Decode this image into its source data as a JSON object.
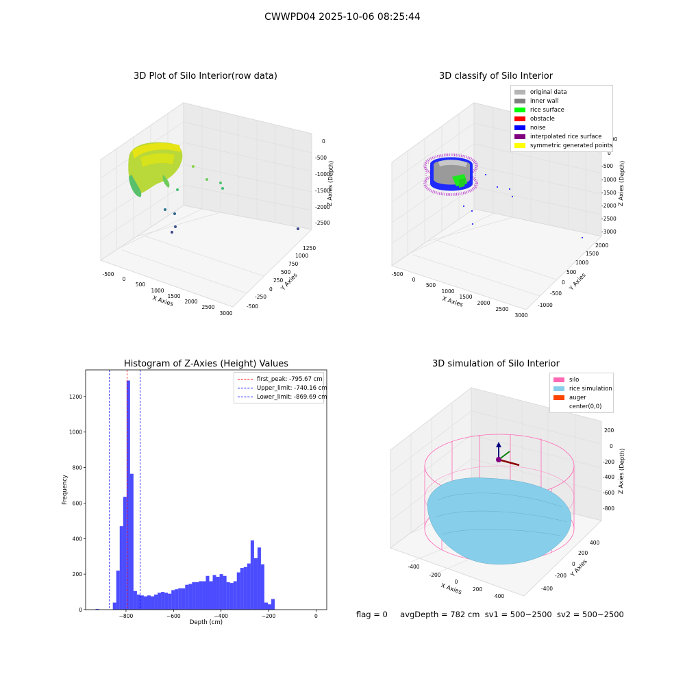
{
  "suptitle": "CWWPD04 2025-10-06 08:25:44",
  "panels": {
    "raw": {
      "title": "3D Plot of Silo Interior(row data)",
      "xlabel": "X Axies",
      "ylabel": "Y Axies",
      "zlabel": "Z Axies (Depth)",
      "xticks": [
        "-500",
        "0",
        "500",
        "1000",
        "1500",
        "2000",
        "2500",
        "3000"
      ],
      "yticks": [
        "-500",
        "-250",
        "0",
        "250",
        "500",
        "750",
        "1000",
        "1250"
      ],
      "zticks": [
        "0",
        "-500",
        "-1000",
        "-1500",
        "-2000",
        "-2500"
      ]
    },
    "classify": {
      "title": "3D classify of Silo Interior",
      "xlabel": "X Axies",
      "ylabel": "Y Axies",
      "zlabel": "Z Axies (Depth)",
      "xticks": [
        "-500",
        "0",
        "500",
        "1000",
        "1500",
        "2000",
        "2500",
        "3000"
      ],
      "yticks": [
        "-1000",
        "-500",
        "0",
        "500",
        "1000",
        "1500",
        "2000"
      ],
      "zticks": [
        "100",
        "0",
        "-500",
        "-1000",
        "-1500",
        "-2000",
        "-2500",
        "-3000"
      ],
      "legend": [
        {
          "label": "original data",
          "color": "#b4b4b4"
        },
        {
          "label": "inner wall",
          "color": "#808080"
        },
        {
          "label": "rice surface",
          "color": "#00ff00"
        },
        {
          "label": "obstacle",
          "color": "#ff0000"
        },
        {
          "label": "noise",
          "color": "#0000ff"
        },
        {
          "label": "interpolated rice surface",
          "color": "#800080"
        },
        {
          "label": "symmetric generated points",
          "color": "#ffff00"
        }
      ]
    },
    "simulation": {
      "title": "3D simulation of Silo Interior",
      "xlabel": "X Axies",
      "ylabel": "Y Axies",
      "zlabel": "Z Axies (Depth)",
      "xticks": [
        "-400",
        "-200",
        "0",
        "200",
        "400"
      ],
      "yticks": [
        "-400",
        "-200",
        "0",
        "200",
        "400"
      ],
      "zticks": [
        "200",
        "0",
        "-200",
        "-400",
        "-600",
        "-800"
      ],
      "legend": [
        {
          "label": "silo",
          "color": "#ff69b4"
        },
        {
          "label": "rice simulation",
          "color": "#87ceeb"
        },
        {
          "label": "auger",
          "color": "#ff4500"
        },
        {
          "label": "center(0,0)",
          "color": "#ffffff"
        }
      ]
    }
  },
  "chart_data": {
    "type": "bar",
    "title": "Histogram of Z-Axies (Height) Values",
    "xlabel": "Depth (cm)",
    "ylabel": "Frequency",
    "xlim": [
      -970,
      45
    ],
    "ylim": [
      0,
      1350
    ],
    "xticks": [
      -800,
      -600,
      -400,
      -200,
      0
    ],
    "yticks": [
      0,
      200,
      400,
      600,
      800,
      1000,
      1200
    ],
    "bin_width": 14.5,
    "bin_starts": [
      -928,
      -913.5,
      -899,
      -884.5,
      -870,
      -855.5,
      -841,
      -826.5,
      -812,
      -797.5,
      -783,
      -768.5,
      -754,
      -739.5,
      -725,
      -710.5,
      -696,
      -681.5,
      -667,
      -652.5,
      -638,
      -623.5,
      -609,
      -594.5,
      -580,
      -565.5,
      -551,
      -536.5,
      -522,
      -507.5,
      -493,
      -478.5,
      -464,
      -449.5,
      -435,
      -420.5,
      -406,
      -391.5,
      -377,
      -362.5,
      -348,
      -333.5,
      -319,
      -304.5,
      -290,
      -275.5,
      -261,
      -246.5,
      -232,
      -217.5,
      -203,
      -188.5,
      -174,
      -159.5,
      -145,
      -130.5,
      -116,
      -101.5,
      -87,
      -72.5,
      -58,
      -43.5,
      -29,
      -14.5
    ],
    "counts": [
      4,
      0,
      0,
      0,
      0,
      40,
      220,
      470,
      635,
      1290,
      765,
      105,
      85,
      80,
      75,
      80,
      75,
      85,
      95,
      100,
      95,
      90,
      110,
      115,
      120,
      120,
      140,
      145,
      155,
      155,
      160,
      160,
      190,
      160,
      195,
      185,
      200,
      190,
      155,
      150,
      160,
      210,
      235,
      240,
      260,
      390,
      290,
      350,
      255,
      40,
      30,
      60,
      0,
      0,
      0,
      0,
      0,
      0,
      0,
      0,
      0,
      0,
      0,
      0
    ],
    "color": "#0000ff",
    "lines": [
      {
        "label": "first_peak: -795.67 cm",
        "x": -795.67,
        "color": "#ff0000"
      },
      {
        "label": "Upper_limit: -740.16 cm",
        "x": -740.16,
        "color": "#0000ff"
      },
      {
        "label": "Lower_limit: -869.69 cm",
        "x": -869.69,
        "color": "#0000ff"
      }
    ]
  },
  "status": {
    "flag": "flag = 0",
    "avg": "avgDepth = 782 cm",
    "sv1": "sv1 = 500~2500",
    "sv2": "sv2 = 500~2500"
  }
}
